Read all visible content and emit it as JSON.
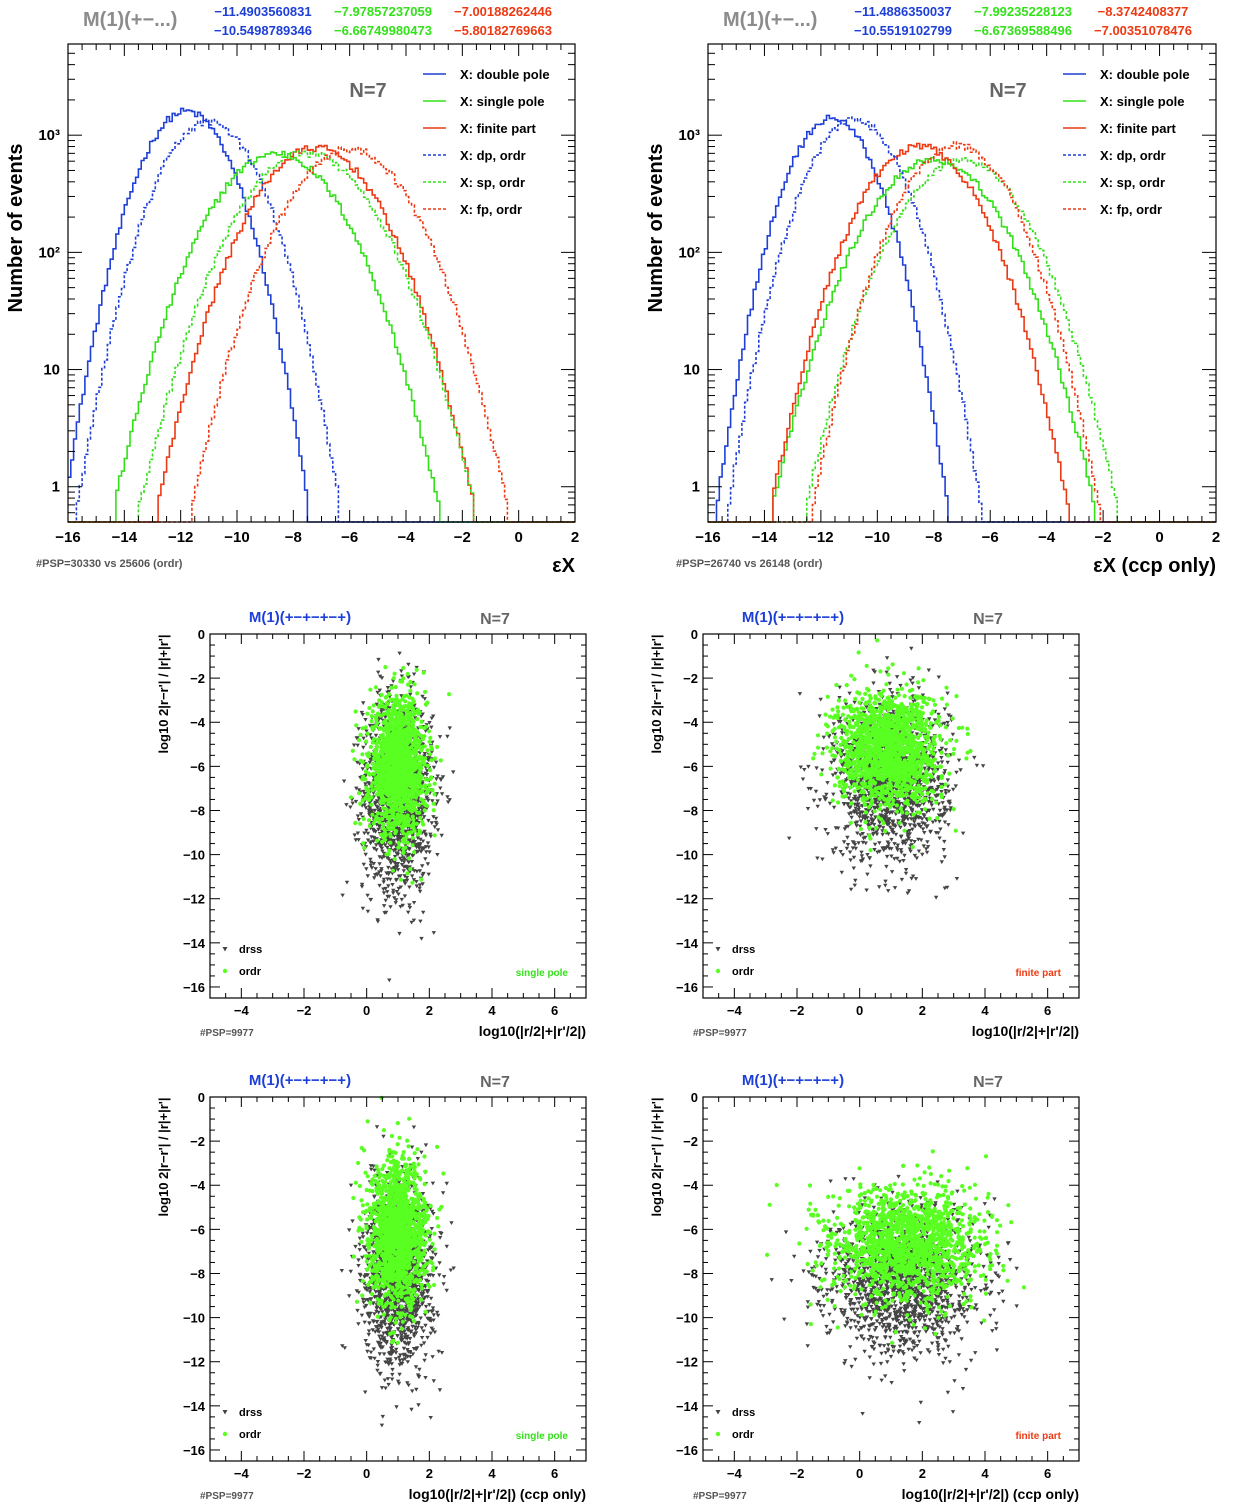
{
  "colors": {
    "blue": "#1e3fd8",
    "green": "#33e01a",
    "red": "#ee3a13",
    "grey": "#8c8c8c",
    "dark": "#444444",
    "fill_green": "#59ff21"
  },
  "chart_data": [
    {
      "type": "line",
      "log_y": true,
      "xlim": [
        -16,
        2
      ],
      "ylim": [
        0.5,
        6000
      ],
      "xticks": [
        "-16",
        "-14",
        "-12",
        "-10",
        "-8",
        "-6",
        "-4",
        "-2",
        "0",
        "2"
      ],
      "yticks": [
        "1",
        "10",
        "10²",
        "10³"
      ],
      "ylabel": "Number of events",
      "xlabel": "εX",
      "header_label": "M(1)(+−...)",
      "header_values": {
        "row1": [
          "−11.4903560831",
          "−7.97857237059",
          "−7.00188262446"
        ],
        "row2": [
          "−10.5498789346",
          "−6.66749980473",
          "−5.80182769663"
        ]
      },
      "n_label": "N=7",
      "footer": "#PSP=30330 vs 25606 (ordr)",
      "legend_position": "top-right",
      "series": [
        {
          "name": "X: double pole",
          "style": "solid",
          "color": "blue",
          "peak_x": -11.8,
          "peak_y": 1600,
          "width": 1.1
        },
        {
          "name": "X: single pole",
          "style": "solid",
          "color": "green",
          "peak_x": -8.6,
          "peak_y": 700,
          "width": 1.55
        },
        {
          "name": "X: finite part",
          "style": "solid",
          "color": "red",
          "peak_x": -7.2,
          "peak_y": 780,
          "width": 1.5
        },
        {
          "name": "X: dp, ordr",
          "style": "dashed",
          "color": "blue",
          "peak_x": -11.0,
          "peak_y": 1300,
          "width": 1.2
        },
        {
          "name": "X: sp, ordr",
          "style": "dashed",
          "color": "green",
          "peak_x": -7.5,
          "peak_y": 700,
          "width": 1.6
        },
        {
          "name": "X: fp, ordr",
          "style": "dashed",
          "color": "red",
          "peak_x": -6.0,
          "peak_y": 760,
          "width": 1.5
        }
      ]
    },
    {
      "type": "line",
      "log_y": true,
      "xlim": [
        -16,
        2
      ],
      "ylim": [
        0.5,
        6000
      ],
      "xticks": [
        "-16",
        "-14",
        "-12",
        "-10",
        "-8",
        "-6",
        "-4",
        "-2",
        "0",
        "2"
      ],
      "yticks": [
        "1",
        "10",
        "10²",
        "10³"
      ],
      "ylabel": "Number of events",
      "xlabel": "εX (ccp only)",
      "header_label": "M(1)(+−...)",
      "header_values": {
        "row1": [
          "−11.4886350037",
          "−7.99235228123",
          "−8.3742408377"
        ],
        "row2": [
          "−10.5519102799",
          "−6.67369588496",
          "−7.00351078476"
        ]
      },
      "n_label": "N=7",
      "footer": "#PSP=26740 vs 26148 (ordr)",
      "legend_position": "top-right",
      "series": [
        {
          "name": "X: double pole",
          "style": "solid",
          "color": "blue",
          "peak_x": -11.6,
          "peak_y": 1400,
          "width": 1.05
        },
        {
          "name": "X: single pole",
          "style": "solid",
          "color": "green",
          "peak_x": -8.0,
          "peak_y": 620,
          "width": 1.55
        },
        {
          "name": "X: finite part",
          "style": "solid",
          "color": "red",
          "peak_x": -8.5,
          "peak_y": 800,
          "width": 1.4
        },
        {
          "name": "X: dp, ordr",
          "style": "dashed",
          "color": "blue",
          "peak_x": -10.8,
          "peak_y": 1350,
          "width": 1.15
        },
        {
          "name": "X: sp, ordr",
          "style": "dashed",
          "color": "green",
          "peak_x": -7.0,
          "peak_y": 600,
          "width": 1.5
        },
        {
          "name": "X: fp, ordr",
          "style": "dashed",
          "color": "red",
          "peak_x": -7.2,
          "peak_y": 820,
          "width": 1.35
        }
      ]
    },
    {
      "type": "scatter",
      "xlim": [
        -5,
        7
      ],
      "ylim": [
        -16.5,
        0
      ],
      "xticks": [
        "-4",
        "-2",
        "0",
        "2",
        "4",
        "6"
      ],
      "yticks": [
        "0",
        "-2",
        "-4",
        "-6",
        "-8",
        "-10",
        "-12",
        "-14",
        "-16"
      ],
      "title": "M(1)(+−+−+−+)",
      "n_label": "N=7",
      "ylabel": "log10 2|r−r'| / |r|+|r'|",
      "xlabel": "log10(|r/2|+|r'/2|)",
      "footer": "#PSP=9977",
      "tag": "single pole",
      "tag_color": "green",
      "legend": [
        "drss",
        "ordr"
      ],
      "series": [
        {
          "name": "drss",
          "marker": "triangle-down",
          "color": "dark",
          "cx": 1.0,
          "cy": -7.2,
          "sx": 0.55,
          "sy": 2.2
        },
        {
          "name": "ordr",
          "marker": "circle",
          "color": "fill_green",
          "cx": 1.0,
          "cy": -6.0,
          "sx": 0.45,
          "sy": 1.5
        }
      ]
    },
    {
      "type": "scatter",
      "xlim": [
        -5,
        7
      ],
      "ylim": [
        -16.5,
        0
      ],
      "xticks": [
        "-4",
        "-2",
        "0",
        "2",
        "4",
        "6"
      ],
      "yticks": [
        "0",
        "-2",
        "-4",
        "-6",
        "-8",
        "-10",
        "-12",
        "-14",
        "-16"
      ],
      "title": "M(1)(+−+−+−+)",
      "n_label": "N=7",
      "ylabel": "log10 2|r−r'| / |r|+|r'|",
      "xlabel": "log10(|r/2|+|r'/2|)",
      "footer": "#PSP=9977",
      "tag": "finite part",
      "tag_color": "red",
      "legend": [
        "drss",
        "ordr"
      ],
      "series": [
        {
          "name": "drss",
          "marker": "triangle-down",
          "color": "dark",
          "cx": 1.0,
          "cy": -6.6,
          "sx": 0.9,
          "sy": 1.8
        },
        {
          "name": "ordr",
          "marker": "circle",
          "color": "fill_green",
          "cx": 0.9,
          "cy": -5.2,
          "sx": 0.8,
          "sy": 1.3
        }
      ]
    },
    {
      "type": "scatter",
      "xlim": [
        -5,
        7
      ],
      "ylim": [
        -16.5,
        0
      ],
      "xticks": [
        "-4",
        "-2",
        "0",
        "2",
        "4",
        "6"
      ],
      "yticks": [
        "0",
        "-2",
        "-4",
        "-6",
        "-8",
        "-10",
        "-12",
        "-14",
        "-16"
      ],
      "title": "M(1)(+−+−+−+)",
      "n_label": "N=7",
      "ylabel": "log10 2|r−r'| / |r|+|r'|",
      "xlabel": "log10(|r/2|+|r'/2|)   (ccp only)",
      "footer": "#PSP=9977",
      "tag": "single pole",
      "tag_color": "green",
      "legend": [
        "drss",
        "ordr"
      ],
      "series": [
        {
          "name": "drss",
          "marker": "triangle-down",
          "color": "dark",
          "cx": 1.0,
          "cy": -8.0,
          "sx": 0.55,
          "sy": 2.1
        },
        {
          "name": "ordr",
          "marker": "circle",
          "color": "fill_green",
          "cx": 1.0,
          "cy": -6.2,
          "sx": 0.45,
          "sy": 1.6
        }
      ]
    },
    {
      "type": "scatter",
      "xlim": [
        -5,
        7
      ],
      "ylim": [
        -16.5,
        0
      ],
      "xticks": [
        "-4",
        "-2",
        "0",
        "2",
        "4",
        "6"
      ],
      "yticks": [
        "0",
        "-2",
        "-4",
        "-6",
        "-8",
        "-10",
        "-12",
        "-14",
        "-16"
      ],
      "title": "M(1)(+−+−+−+)",
      "n_label": "N=7",
      "ylabel": "log10 2|r−r'| / |r|+|r'|",
      "xlabel": "log10(|r/2|+|r'/2|)   (ccp only)",
      "footer": "#PSP=9977",
      "tag": "finite part",
      "tag_color": "red",
      "legend": [
        "drss",
        "ordr"
      ],
      "series": [
        {
          "name": "drss",
          "marker": "triangle-down",
          "color": "dark",
          "cx": 1.4,
          "cy": -8.4,
          "sx": 1.2,
          "sy": 1.6
        },
        {
          "name": "ordr",
          "marker": "circle",
          "color": "fill_green",
          "cx": 1.5,
          "cy": -6.7,
          "sx": 1.2,
          "sy": 1.3
        }
      ]
    }
  ]
}
